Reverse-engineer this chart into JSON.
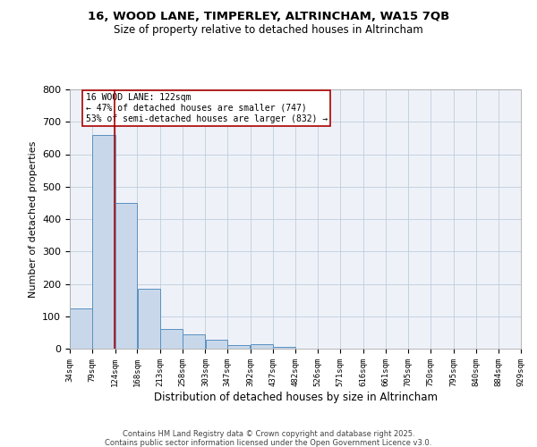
{
  "title1": "16, WOOD LANE, TIMPERLEY, ALTRINCHAM, WA15 7QB",
  "title2": "Size of property relative to detached houses in Altrincham",
  "xlabel": "Distribution of detached houses by size in Altrincham",
  "ylabel": "Number of detached properties",
  "bin_edges": [
    34,
    79,
    124,
    168,
    213,
    258,
    303,
    347,
    392,
    437,
    482,
    526,
    571,
    616,
    661,
    705,
    750,
    795,
    840,
    884,
    929
  ],
  "bar_heights": [
    125,
    660,
    450,
    185,
    60,
    45,
    27,
    12,
    15,
    5,
    1,
    0,
    0,
    0,
    1,
    0,
    0,
    0,
    0,
    0
  ],
  "bar_color": "#c8d8ea",
  "bar_edge_color": "#5a90c0",
  "grid_color": "#c0ccdd",
  "bg_color": "#eef2f8",
  "property_line_x": 122,
  "property_line_color": "#aa0000",
  "annotation_text": "16 WOOD LANE: 122sqm\n← 47% of detached houses are smaller (747)\n53% of semi-detached houses are larger (832) →",
  "annotation_box_color": "#aa0000",
  "ylim": [
    0,
    800
  ],
  "yticks": [
    0,
    100,
    200,
    300,
    400,
    500,
    600,
    700,
    800
  ],
  "footnote1": "Contains HM Land Registry data © Crown copyright and database right 2025.",
  "footnote2": "Contains public sector information licensed under the Open Government Licence v3.0."
}
